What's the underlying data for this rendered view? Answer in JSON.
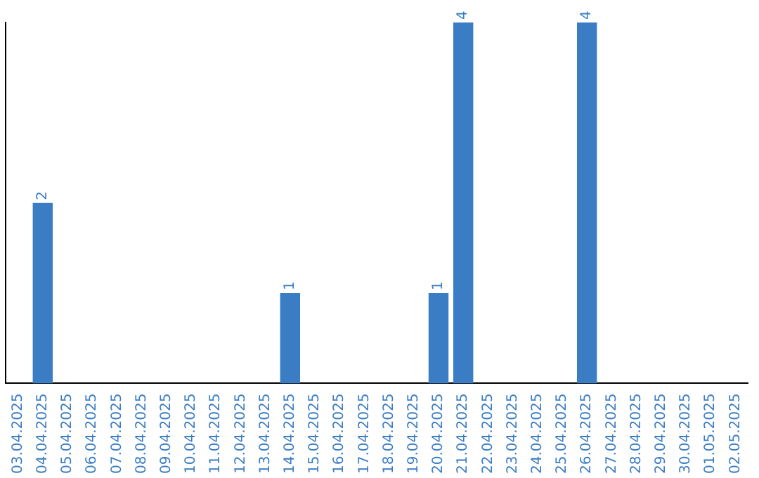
{
  "chart_data": {
    "type": "bar",
    "categories": [
      "03.04.2025",
      "04.04.2025",
      "05.04.2025",
      "06.04.2025",
      "07.04.2025",
      "08.04.2025",
      "09.04.2025",
      "10.04.2025",
      "11.04.2025",
      "12.04.2025",
      "13.04.2025",
      "14.04.2025",
      "15.04.2025",
      "16.04.2025",
      "17.04.2025",
      "18.04.2025",
      "19.04.2025",
      "20.04.2025",
      "21.04.2025",
      "22.04.2025",
      "23.04.2025",
      "24.04.2025",
      "25.04.2025",
      "26.04.2025",
      "27.04.2025",
      "28.04.2025",
      "29.04.2025",
      "30.04.2025",
      "01.05.2025",
      "02.05.2025"
    ],
    "values": [
      0,
      2,
      0,
      0,
      0,
      0,
      0,
      0,
      0,
      0,
      0,
      1,
      0,
      0,
      0,
      0,
      0,
      1,
      4,
      0,
      0,
      0,
      0,
      4,
      0,
      0,
      0,
      0,
      0,
      0
    ],
    "value_labels": [
      null,
      "2",
      null,
      null,
      null,
      null,
      null,
      null,
      null,
      null,
      null,
      "1",
      null,
      null,
      null,
      null,
      null,
      "1",
      "4",
      null,
      null,
      null,
      null,
      "4",
      null,
      null,
      null,
      null,
      null,
      null
    ],
    "color": "#3b7dc4",
    "ylim": [
      0,
      4
    ],
    "grid": false,
    "legend": false,
    "tick_labels": "x"
  }
}
